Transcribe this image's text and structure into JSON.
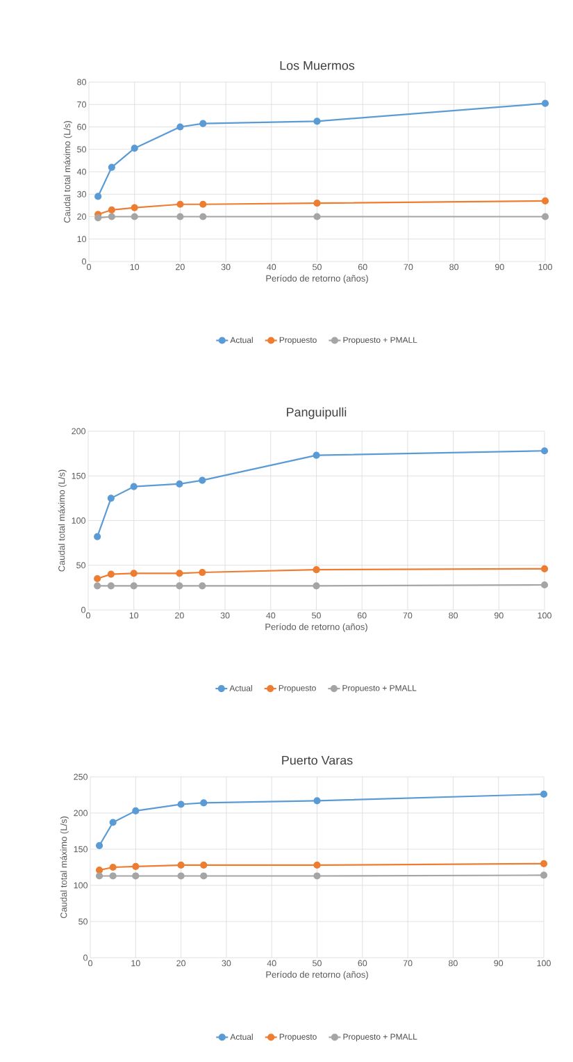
{
  "chart_data": [
    {
      "type": "line",
      "title": "Los Muermos",
      "xlabel": "Período de retorno (años)",
      "ylabel": "Caudal total máximo (L/s)",
      "x": [
        2,
        5,
        10,
        20,
        25,
        50,
        100
      ],
      "series": [
        {
          "name": "Actual",
          "color": "#5b9bd5",
          "values": [
            29,
            42,
            50.5,
            60,
            61.5,
            62.5,
            70.5
          ]
        },
        {
          "name": "Propuesto",
          "color": "#ed7d31",
          "values": [
            21,
            23,
            24,
            25.5,
            25.5,
            26,
            27
          ]
        },
        {
          "name": "Propuesto + PMALL",
          "color": "#a5a5a5",
          "values": [
            19.5,
            20,
            20,
            20,
            20,
            20,
            20
          ]
        }
      ],
      "xlim": [
        0,
        100
      ],
      "xticks": [
        0,
        10,
        20,
        30,
        40,
        50,
        60,
        70,
        80,
        90,
        100
      ],
      "ylim": [
        0,
        80
      ],
      "yticks": [
        0,
        10,
        20,
        30,
        40,
        50,
        60,
        70,
        80
      ],
      "grid": true,
      "legend": "bottom",
      "marker": "circle",
      "line_style": "solid"
    },
    {
      "type": "line",
      "title": "Panguipulli",
      "xlabel": "Período de retorno (años)",
      "ylabel": "Caudal total máximo (L/s)",
      "x": [
        2,
        5,
        10,
        20,
        25,
        50,
        100
      ],
      "series": [
        {
          "name": "Actual",
          "color": "#5b9bd5",
          "values": [
            82,
            125,
            138,
            141,
            145,
            173,
            178
          ]
        },
        {
          "name": "Propuesto",
          "color": "#ed7d31",
          "values": [
            35,
            40,
            41,
            41,
            42,
            45,
            46
          ]
        },
        {
          "name": "Propuesto + PMALL",
          "color": "#a5a5a5",
          "values": [
            27,
            27,
            27,
            27,
            27,
            27,
            28
          ]
        }
      ],
      "xlim": [
        0,
        100
      ],
      "xticks": [
        0,
        10,
        20,
        30,
        40,
        50,
        60,
        70,
        80,
        90,
        100
      ],
      "ylim": [
        0,
        200
      ],
      "yticks": [
        0,
        50,
        100,
        150,
        200
      ],
      "grid": true,
      "legend": "bottom",
      "marker": "circle",
      "line_style": "solid"
    },
    {
      "type": "line",
      "title": "Puerto Varas",
      "xlabel": "Período de retorno (años)",
      "ylabel": "Caudal total máximo (L/s)",
      "x": [
        2,
        5,
        10,
        20,
        25,
        50,
        100
      ],
      "series": [
        {
          "name": "Actual",
          "color": "#5b9bd5",
          "values": [
            155,
            187,
            203,
            212,
            214,
            217,
            226
          ]
        },
        {
          "name": "Propuesto",
          "color": "#ed7d31",
          "values": [
            121,
            125,
            126,
            128,
            128,
            128,
            130
          ]
        },
        {
          "name": "Propuesto + PMALL",
          "color": "#a5a5a5",
          "values": [
            113,
            113,
            113,
            113,
            113,
            113,
            114
          ]
        }
      ],
      "xlim": [
        0,
        100
      ],
      "xticks": [
        0,
        10,
        20,
        30,
        40,
        50,
        60,
        70,
        80,
        90,
        100
      ],
      "ylim": [
        0,
        250
      ],
      "yticks": [
        0,
        50,
        100,
        150,
        200,
        250
      ],
      "grid": true,
      "legend": "bottom",
      "marker": "circle",
      "line_style": "solid"
    }
  ]
}
